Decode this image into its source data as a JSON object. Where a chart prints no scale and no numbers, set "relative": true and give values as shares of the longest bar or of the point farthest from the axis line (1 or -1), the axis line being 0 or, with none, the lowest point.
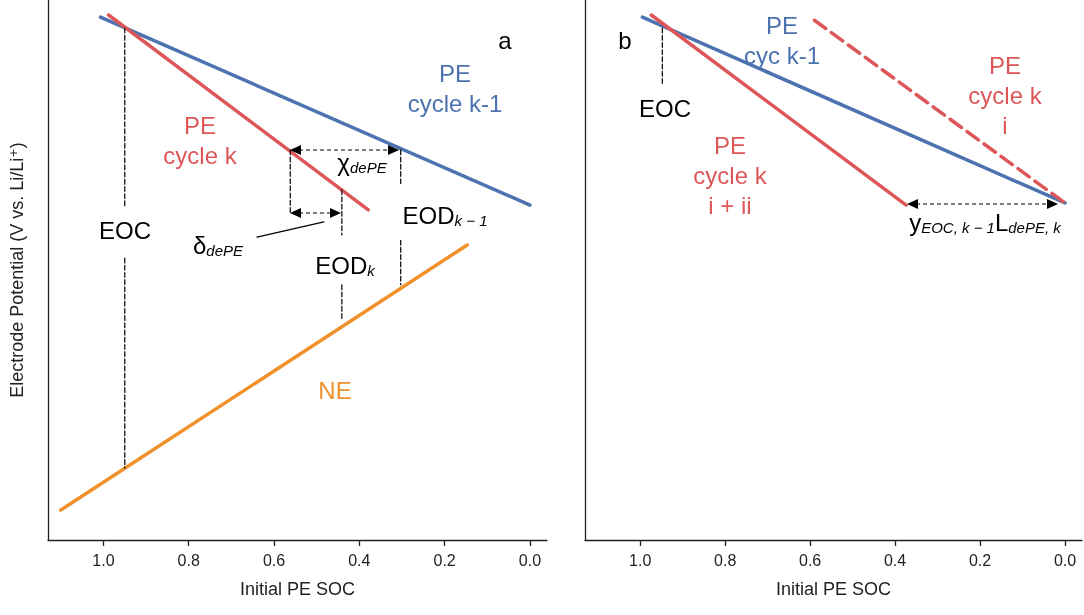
{
  "chart_data": [
    {
      "type": "line",
      "title": "a",
      "xlabel": "Initial PE SOC",
      "ylabel": "Electrode Potential (V vs. Li/Li⁺)",
      "relative": true,
      "tick_labels": "x",
      "legend": false,
      "marker": "none",
      "xlim": [
        1.13,
        -0.04
      ],
      "xticks": [
        {
          "value": 1,
          "label": "1.0"
        },
        {
          "value": 0.8,
          "label": "0.8"
        },
        {
          "value": 0.6,
          "label": "0.6"
        },
        {
          "value": 0.4,
          "label": "0.4"
        },
        {
          "value": 0.2,
          "label": "0.2"
        },
        {
          "value": 0,
          "label": "0.0"
        }
      ],
      "series": [
        {
          "name": "PE\ncycle k-1",
          "color": "#4c72b0",
          "line_style": "solid",
          "x": [
            1.007,
            0.0
          ],
          "values": [
            0.996,
            0.638
          ]
        },
        {
          "name": "PE\ncycle k",
          "color": "#dd5658",
          "line_style": "solid",
          "x": [
            0.988,
            0.379
          ],
          "values": [
            1,
            0.629
          ]
        },
        {
          "name": "NE",
          "color": "#f0912c",
          "line_style": "solid",
          "x": [
            1.1,
            0.147
          ],
          "values": [
            0.057,
            0.562
          ]
        },
        {
          "color": "#000000",
          "line_style": "dashed",
          "x": [
            0.95,
            0.95
          ],
          "values": [
            0.975,
            0.634
          ]
        },
        {
          "color": "#000000",
          "line_style": "dashed",
          "x": [
            0.95,
            0.95
          ],
          "values": [
            0.537,
            0.137
          ]
        },
        {
          "color": "#000000",
          "line_style": "dashed",
          "x": [
            0.562,
            0.562
          ],
          "values": [
            0.743,
            0.623
          ]
        },
        {
          "color": "#000000",
          "line_style": "dashed",
          "x": [
            0.441,
            0.441
          ],
          "values": [
            0.667,
            0.581
          ]
        },
        {
          "color": "#000000",
          "line_style": "dashed",
          "x": [
            0.441,
            0.441
          ],
          "values": [
            0.486,
            0.419
          ]
        },
        {
          "color": "#000000",
          "line_style": "dashed",
          "x": [
            0.303,
            0.303
          ],
          "values": [
            0.743,
            0.676
          ]
        },
        {
          "color": "#000000",
          "line_style": "dashed",
          "x": [
            0.303,
            0.303
          ],
          "values": [
            0.571,
            0.486
          ]
        },
        {
          "color": "#000000",
          "line_style": "solid",
          "x": [
            0.64,
            0.483
          ],
          "values": [
            0.577,
            0.606
          ]
        }
      ],
      "annotations": [
        "EOC",
        "χ$_{dePE}$",
        "δ$_{dePE}$",
        "EOD$_{k}$",
        "EOD$_{k − 1}$"
      ]
    },
    {
      "type": "line",
      "title": "b",
      "xlabel": "Initial PE SOC",
      "relative": true,
      "tick_labels": "x",
      "legend": false,
      "marker": "none",
      "xlim": [
        1.13,
        -0.04
      ],
      "xticks": [
        {
          "value": 1,
          "label": "1.0"
        },
        {
          "value": 0.8,
          "label": "0.8"
        },
        {
          "value": 0.6,
          "label": "0.6"
        },
        {
          "value": 0.4,
          "label": "0.4"
        },
        {
          "value": 0.2,
          "label": "0.2"
        },
        {
          "value": 0,
          "label": "0.0"
        }
      ],
      "series": [
        {
          "name": "PE\ncyc k-1",
          "color": "#4c72b0",
          "line_style": "solid",
          "x": [
            0.995,
            0.0
          ],
          "values": [
            0.996,
            0.642
          ]
        },
        {
          "name": "PE\ncycle k\ni + ii",
          "color": "#dd5658",
          "line_style": "solid",
          "x": [
            0.974,
            0.374
          ],
          "values": [
            1,
            0.638
          ]
        },
        {
          "name": "PE\ncycle k\ni",
          "color": "#dd5658",
          "line_style": "dashed",
          "x": [
            0.59,
            0.0
          ],
          "values": [
            0.99,
            0.642
          ]
        },
        {
          "color": "#000000",
          "line_style": "dashed",
          "x": [
            0.948,
            0.948
          ],
          "values": [
            0.975,
            0.867
          ]
        }
      ],
      "annotations": [
        "EOC",
        "y$_{EOC, k − 1}$L$_{dePE, k}$"
      ]
    }
  ]
}
